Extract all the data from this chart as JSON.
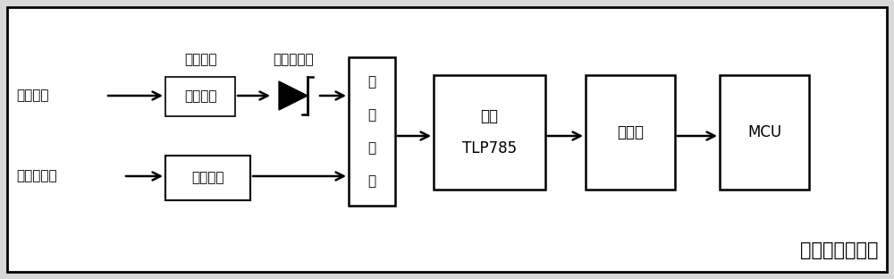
{
  "bg_color": "#d8d8d8",
  "inner_bg_color": "#ffffff",
  "border_color": "#000000",
  "arrow_color": "#000000",
  "text_color": "#000000",
  "label_input": "遥信输入",
  "label_common": "遥信公共端",
  "label_resistor": "限流电阻",
  "label_zener": "稳压二极管",
  "label_absorb_1": "吸",
  "label_absorb_2": "收",
  "label_absorb_3": "电",
  "label_absorb_4": "路",
  "label_optocoupler_1": "光耦",
  "label_optocoupler_2": "TLP785",
  "label_trigger": "触发器",
  "label_mcu": "MCU",
  "label_filter": "滤波电路",
  "label_module": "开关量处理模块",
  "font_size_main": 12,
  "font_size_module": 15,
  "font_size_label": 11
}
